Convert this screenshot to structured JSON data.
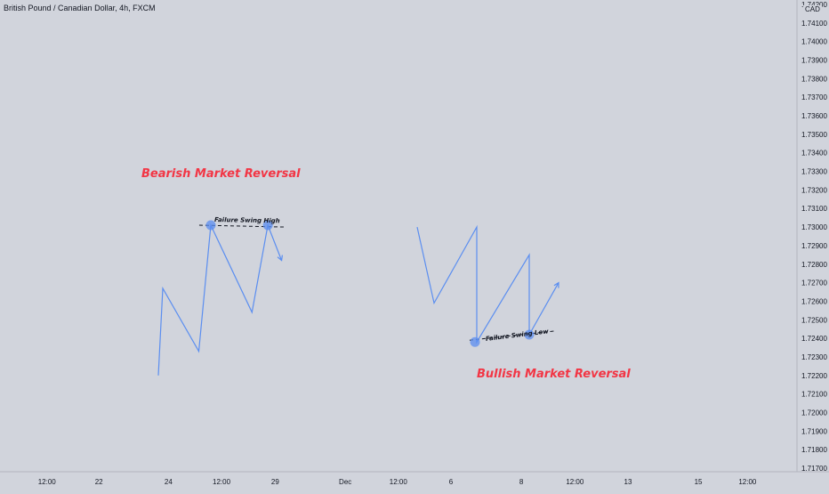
{
  "header": {
    "symbol_title": "British Pound / Canadian Dollar, 4h, FXCM",
    "currency": "CAD"
  },
  "annotations": {
    "bearish_label": "Bearish Market Reversal",
    "bullish_label": "Bullish Market Reversal",
    "failure_swing_high": "Failure Swing High",
    "failure_swing_low": "Failure Swing Low"
  },
  "colors": {
    "background": "#d1d4dc",
    "line": "#5b8ef0",
    "annotation_text": "#f23645",
    "marker": "#5b8ef0"
  },
  "chart_data": {
    "type": "line",
    "title": "British Pound / Canadian Dollar, 4h, FXCM",
    "ylabel": "CAD",
    "ylim": [
      1.717,
      1.742
    ],
    "yticks": [
      1.742,
      1.741,
      1.74,
      1.739,
      1.738,
      1.737,
      1.736,
      1.735,
      1.734,
      1.733,
      1.732,
      1.731,
      1.73,
      1.729,
      1.728,
      1.727,
      1.726,
      1.725,
      1.724,
      1.723,
      1.722,
      1.721,
      1.72,
      1.719,
      1.718,
      1.717
    ],
    "ytick_labels": [
      "1.74200",
      "1.74100",
      "1.74000",
      "1.73900",
      "1.73800",
      "1.73700",
      "1.73600",
      "1.73500",
      "1.73400",
      "1.73300",
      "1.73200",
      "1.73100",
      "1.73000",
      "1.72900",
      "1.72800",
      "1.72700",
      "1.72600",
      "1.72500",
      "1.72400",
      "1.72300",
      "1.72200",
      "1.72100",
      "1.72000",
      "1.71900",
      "1.71800",
      "1.71700"
    ],
    "xticks": [
      {
        "label": "12:00",
        "pos": 0.0566
      },
      {
        "label": "22",
        "pos": 0.1193
      },
      {
        "label": "24",
        "pos": 0.2032
      },
      {
        "label": "12:00",
        "pos": 0.2672
      },
      {
        "label": "29",
        "pos": 0.3319
      },
      {
        "label": "Dec",
        "pos": 0.4165
      },
      {
        "label": "12:00",
        "pos": 0.4805
      },
      {
        "label": "6",
        "pos": 0.544
      },
      {
        "label": "8",
        "pos": 0.6288
      },
      {
        "label": "12:00",
        "pos": 0.6935
      },
      {
        "label": "13",
        "pos": 0.7575
      },
      {
        "label": "15",
        "pos": 0.8423
      },
      {
        "label": "12:00",
        "pos": 0.9017
      }
    ],
    "series": [
      {
        "points": [
          {
            "x": 0.191,
            "y": 1.722
          },
          {
            "x": 0.1964,
            "y": 1.7267
          },
          {
            "x": 0.2398,
            "y": 1.7233
          },
          {
            "x": 0.2543,
            "y": 1.7301
          },
          {
            "x": 0.304,
            "y": 1.7254
          },
          {
            "x": 0.3231,
            "y": 1.7301
          },
          {
            "x": 0.3397,
            "y": 1.7282
          }
        ]
      },
      {
        "points": [
          {
            "x": 0.5032,
            "y": 1.73
          },
          {
            "x": 0.5236,
            "y": 1.7259
          },
          {
            "x": 0.5751,
            "y": 1.73
          },
          {
            "x": 0.5751,
            "y": 1.7238
          },
          {
            "x": 0.6384,
            "y": 1.7285
          },
          {
            "x": 0.6384,
            "y": 1.7242
          },
          {
            "x": 0.6738,
            "y": 1.727
          }
        ]
      }
    ],
    "failure_levels": [
      {
        "x1": 0.2403,
        "y1": 1.7301,
        "x2": 0.3433,
        "y2": 1.73
      },
      {
        "x1": 0.5665,
        "y1": 1.7239,
        "x2": 0.6706,
        "y2": 1.7244
      }
    ],
    "markers": [
      {
        "x": 0.2543,
        "y": 1.7301
      },
      {
        "x": 0.3231,
        "y": 1.7301
      },
      {
        "x": 0.573,
        "y": 1.7238
      },
      {
        "x": 0.6384,
        "y": 1.7242
      }
    ]
  }
}
